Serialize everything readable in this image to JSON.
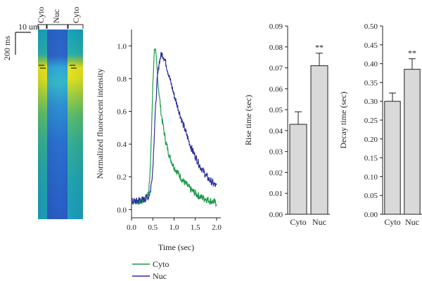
{
  "kymograph": {
    "labels": [
      "Cyto",
      "Nuc",
      "Cyto"
    ],
    "time_scale_label": "200 ms",
    "space_scale_label": "10 um"
  },
  "chart_data": [
    {
      "type": "line",
      "xlabel": "Time (sec)",
      "ylabel": "Normalized fluorescent intensity",
      "xlim": [
        0.0,
        2.1
      ],
      "ylim": [
        -0.05,
        1.1
      ],
      "xticks": [
        "0.0",
        "0.5",
        "1.0",
        "1.5",
        "2.0"
      ],
      "yticks": [
        "0.0",
        "0.2",
        "0.4",
        "0.6",
        "0.8",
        "1.0"
      ],
      "legend_position": "bottom-left",
      "series": [
        {
          "name": "Cyto",
          "color": "#1e9a4a",
          "x": [
            0.0,
            0.1,
            0.2,
            0.3,
            0.4,
            0.45,
            0.5,
            0.53,
            0.55,
            0.58,
            0.62,
            0.7,
            0.8,
            0.9,
            1.0,
            1.2,
            1.4,
            1.6,
            1.8,
            2.0
          ],
          "y": [
            0.05,
            0.05,
            0.05,
            0.06,
            0.1,
            0.3,
            0.75,
            0.95,
            1.0,
            0.92,
            0.78,
            0.58,
            0.42,
            0.32,
            0.26,
            0.18,
            0.12,
            0.08,
            0.06,
            0.04
          ]
        },
        {
          "name": "Nuc",
          "color": "#2b2fa0",
          "x": [
            0.0,
            0.1,
            0.2,
            0.3,
            0.4,
            0.45,
            0.5,
            0.55,
            0.6,
            0.65,
            0.7,
            0.75,
            0.8,
            0.9,
            1.0,
            1.2,
            1.4,
            1.6,
            1.8,
            2.0
          ],
          "y": [
            0.05,
            0.05,
            0.06,
            0.06,
            0.08,
            0.12,
            0.25,
            0.55,
            0.78,
            0.9,
            0.95,
            0.94,
            0.9,
            0.8,
            0.7,
            0.53,
            0.38,
            0.27,
            0.19,
            0.14
          ]
        }
      ]
    },
    {
      "type": "bar",
      "categories": [
        "Cyto",
        "Nuc"
      ],
      "values": [
        0.043,
        0.071
      ],
      "errors": [
        0.006,
        0.006
      ],
      "significance": [
        "",
        "**"
      ],
      "ylabel": "Rise time (sec)",
      "ylim": [
        0.0,
        0.09
      ],
      "yticks": [
        "0.00",
        "0.01",
        "0.02",
        "0.03",
        "0.04",
        "0.05",
        "0.06",
        "0.07",
        "0.08",
        "0.09"
      ],
      "color": "#d9d9d9"
    },
    {
      "type": "bar",
      "categories": [
        "Cyto",
        "Nuc"
      ],
      "values": [
        0.3,
        0.385
      ],
      "errors": [
        0.022,
        0.028
      ],
      "significance": [
        "",
        "**"
      ],
      "ylabel": "Decay time (sec)",
      "ylim": [
        0.0,
        0.5
      ],
      "yticks": [
        "0.00",
        "0.05",
        "0.10",
        "0.15",
        "0.20",
        "0.25",
        "0.30",
        "0.35",
        "0.40",
        "0.45",
        "0.50"
      ],
      "color": "#d9d9d9"
    }
  ]
}
